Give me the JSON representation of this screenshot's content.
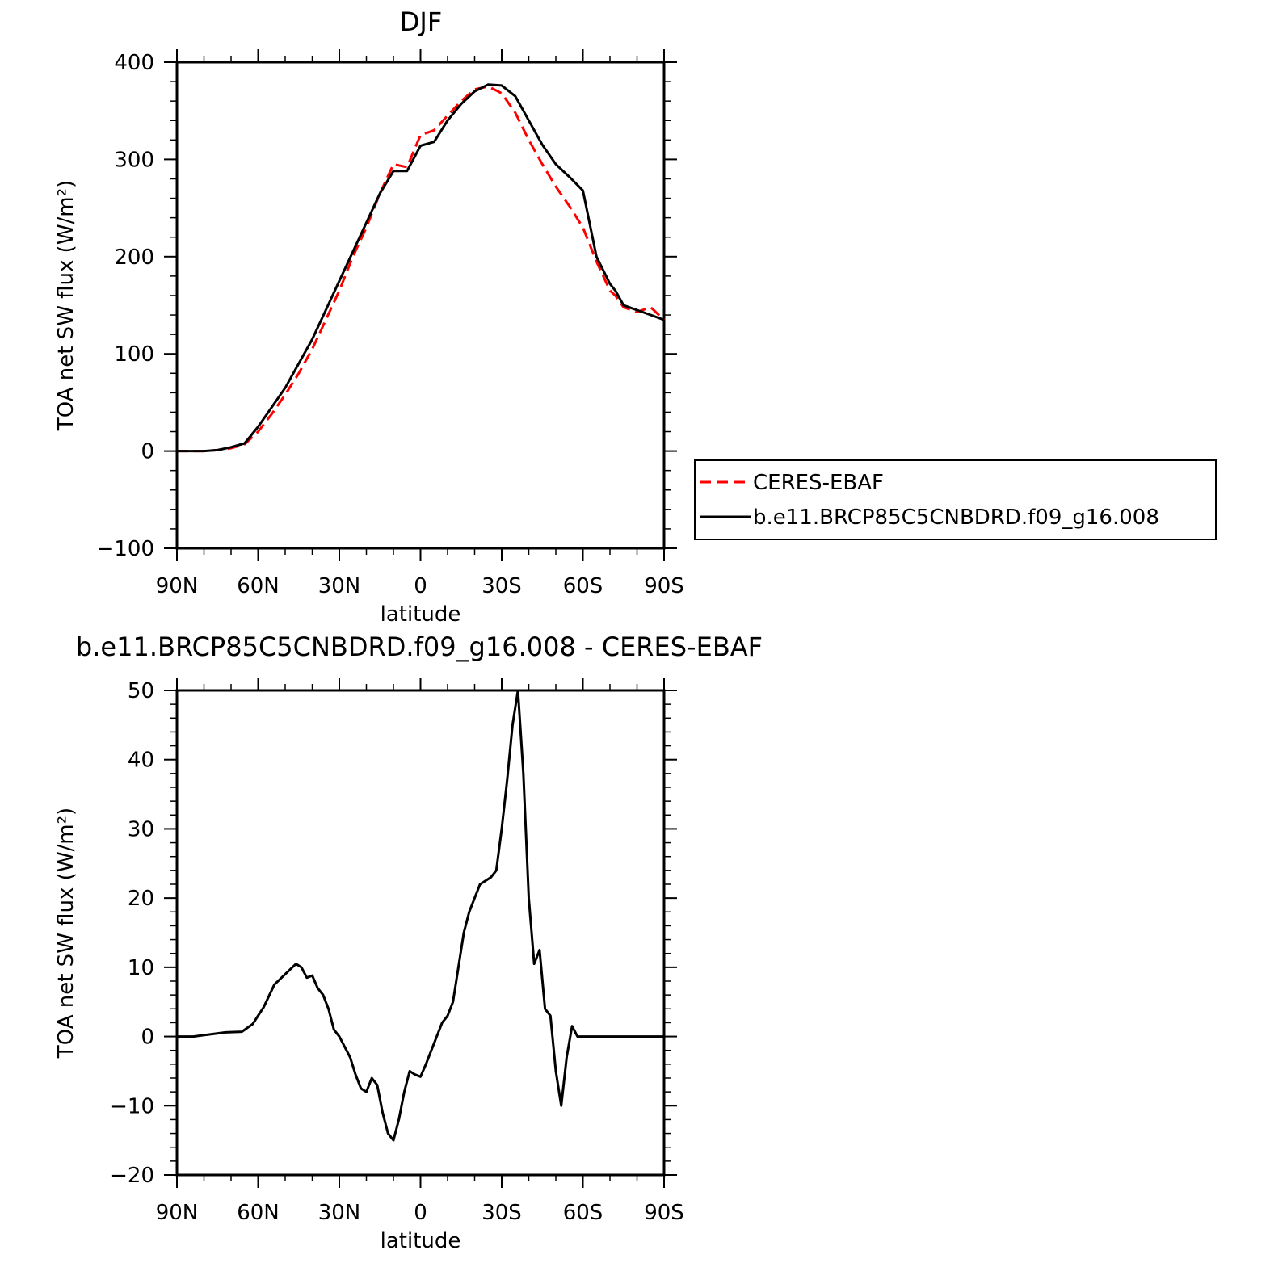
{
  "figure": {
    "top_title": "DJF",
    "bottom_title": "b.e11.BRCP85C5CNBDRD.f09_g16.008 - CERES-EBAF"
  },
  "chart_data": [
    {
      "type": "line",
      "title": "DJF",
      "xlabel": "latitude",
      "ylabel": "TOA net SW flux (W/m²)",
      "xlim": [
        90,
        -90
      ],
      "ylim": [
        -100,
        400
      ],
      "x_ticks": [
        90,
        60,
        30,
        0,
        -30,
        -60,
        -90
      ],
      "x_tick_labels": [
        "90N",
        "60N",
        "30N",
        "0",
        "30S",
        "60S",
        "90S"
      ],
      "y_ticks": [
        -100,
        0,
        100,
        200,
        300,
        400
      ],
      "y_tick_labels": [
        "−100",
        "0",
        "100",
        "200",
        "300",
        "400"
      ],
      "grid": false,
      "legend": {
        "placement": "right-outside",
        "entries": [
          "CERES-EBAF",
          "b.e11.BRCP85C5CNBDRD.f09_g16.008"
        ]
      },
      "x": [
        90,
        85,
        80,
        75,
        70,
        65,
        60,
        55,
        50,
        45,
        40,
        35,
        30,
        25,
        20,
        15,
        10,
        5,
        0,
        -5,
        -10,
        -15,
        -20,
        -25,
        -30,
        -35,
        -40,
        -45,
        -50,
        -55,
        -60,
        -65,
        -70,
        -72,
        -75,
        -80,
        -85,
        -90
      ],
      "series": [
        {
          "name": "CERES-EBAF",
          "color": "#ff0000",
          "dash": "dashed",
          "values": [
            0,
            0,
            0,
            1,
            3,
            7,
            20,
            38,
            58,
            80,
            105,
            135,
            165,
            200,
            230,
            265,
            295,
            292,
            325,
            330,
            345,
            360,
            372,
            375,
            368,
            348,
            320,
            295,
            272,
            252,
            230,
            195,
            165,
            160,
            148,
            143,
            148,
            135
          ]
        },
        {
          "name": "b.e11.BRCP85C5CNBDRD.f09_g16.008",
          "color": "#000000",
          "dash": "solid",
          "values": [
            0,
            0,
            0,
            1,
            4,
            8,
            25,
            45,
            65,
            90,
            115,
            145,
            175,
            205,
            235,
            265,
            288,
            288,
            314,
            318,
            340,
            357,
            370,
            377,
            376,
            365,
            340,
            315,
            295,
            282,
            268,
            200,
            172,
            165,
            150,
            145,
            140,
            135
          ]
        }
      ]
    },
    {
      "type": "line",
      "title": "b.e11.BRCP85C5CNBDRD.f09_g16.008 - CERES-EBAF",
      "xlabel": "latitude",
      "ylabel": "TOA net SW flux (W/m²)",
      "xlim": [
        90,
        -90
      ],
      "ylim": [
        -20,
        50
      ],
      "x_ticks": [
        90,
        60,
        30,
        0,
        -30,
        -60,
        -90
      ],
      "x_tick_labels": [
        "90N",
        "60N",
        "30N",
        "0",
        "30S",
        "60S",
        "90S"
      ],
      "y_ticks": [
        -20,
        -10,
        0,
        10,
        20,
        30,
        40,
        50
      ],
      "y_tick_labels": [
        "−20",
        "−10",
        "0",
        "10",
        "20",
        "30",
        "40",
        "50"
      ],
      "grid": false,
      "x": [
        90,
        84,
        78,
        72,
        66,
        62,
        58,
        54,
        50,
        46,
        44,
        42,
        40,
        38,
        36,
        34,
        32,
        30,
        28,
        26,
        24,
        22,
        20,
        18,
        16,
        14,
        12,
        10,
        8,
        6,
        4,
        2,
        0,
        -2,
        -4,
        -6,
        -8,
        -10,
        -12,
        -14,
        -16,
        -18,
        -20,
        -22,
        -24,
        -26,
        -28,
        -30,
        -32,
        -34,
        -36,
        -38,
        -40,
        -42,
        -44,
        -46,
        -48,
        -50,
        -52,
        -54,
        -56,
        -58,
        -60,
        -62,
        -64,
        -65,
        -66,
        -68,
        -70,
        -72,
        -74,
        -75,
        -76,
        -78,
        -80,
        -82,
        -84,
        -86,
        -87,
        -88,
        -90
      ],
      "series": [
        {
          "name": "b.e11.BRCP85C5CNBDRD.f09_g16.008",
          "color": "#000000",
          "dash": "solid",
          "values": [
            0,
            0,
            0.3,
            0.6,
            0.7,
            1.8,
            4.2,
            7.5,
            9,
            10.5,
            10,
            8.5,
            8.8,
            7,
            6,
            4,
            1,
            0,
            -1.5,
            -3,
            -5.5,
            -7.5,
            -8,
            -6,
            -7,
            -11,
            -14,
            -15,
            -12,
            -8,
            -5,
            -5.5,
            -5.8,
            -4,
            -2,
            0,
            2,
            3,
            5,
            10,
            15,
            18,
            20,
            22,
            22.5,
            23,
            24,
            30,
            37,
            45,
            50,
            38,
            20,
            10.5,
            12.5,
            4,
            3,
            -5,
            -10,
            -3,
            1.5,
            0,
            0,
            0,
            0,
            0,
            0,
            0,
            0,
            0,
            0,
            0,
            0,
            0,
            0,
            0,
            0,
            0,
            0,
            0,
            0
          ]
        }
      ]
    }
  ]
}
